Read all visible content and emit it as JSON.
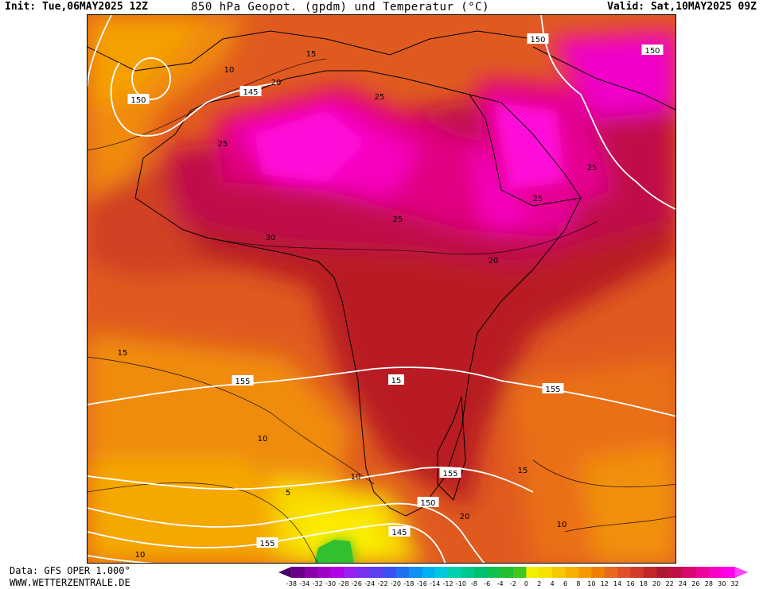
{
  "header": {
    "init": "Init: Tue,06MAY2025 12Z",
    "title": "850 hPa Geopot. (gpdm) und Temperatur (°C)",
    "valid": "Valid: Sat,10MAY2025 09Z"
  },
  "footer": {
    "source": "Data: GFS OPER 1.000°",
    "site": "WWW.WETTERZENTRALE.DE"
  },
  "map": {
    "region": "Africa",
    "geopotential_labels": [
      "150",
      "145",
      "150",
      "150",
      "155",
      "15",
      "155",
      "155",
      "150",
      "145",
      "155"
    ],
    "temperature_labels": [
      "15",
      "10",
      "20",
      "25",
      "25",
      "25",
      "25",
      "25",
      "20",
      "30",
      "15",
      "10",
      "10",
      "5",
      "10",
      "15",
      "10",
      "20"
    ]
  },
  "legend": {
    "ticks": [
      "-38",
      "-34",
      "-32",
      "-30",
      "-28",
      "-26",
      "-24",
      "-22",
      "-20",
      "-18",
      "-16",
      "-14",
      "-12",
      "-10",
      "-8",
      "-6",
      "-4",
      "-2",
      "0",
      "2",
      "4",
      "6",
      "8",
      "10",
      "12",
      "14",
      "16",
      "18",
      "20",
      "22",
      "24",
      "26",
      "28",
      "30",
      "32"
    ],
    "colors": [
      "#4b0068",
      "#6a0088",
      "#8a00a8",
      "#a000c8",
      "#b400e6",
      "#9a20f0",
      "#7a30f0",
      "#5a40f0",
      "#3a50f0",
      "#2070f0",
      "#1090f0",
      "#00b0f0",
      "#00c8e0",
      "#00d0b0",
      "#00c890",
      "#00c070",
      "#10c050",
      "#20c030",
      "#40c820",
      "#f0f000",
      "#f8e000",
      "#f8c800",
      "#f8b000",
      "#f89800",
      "#f08000",
      "#e86820",
      "#e05028",
      "#d03c28",
      "#c02828",
      "#b01830",
      "#c01048",
      "#d80870",
      "#ec0498",
      "#fa00c8",
      "#ff00e8",
      "#ff40ff"
    ]
  }
}
